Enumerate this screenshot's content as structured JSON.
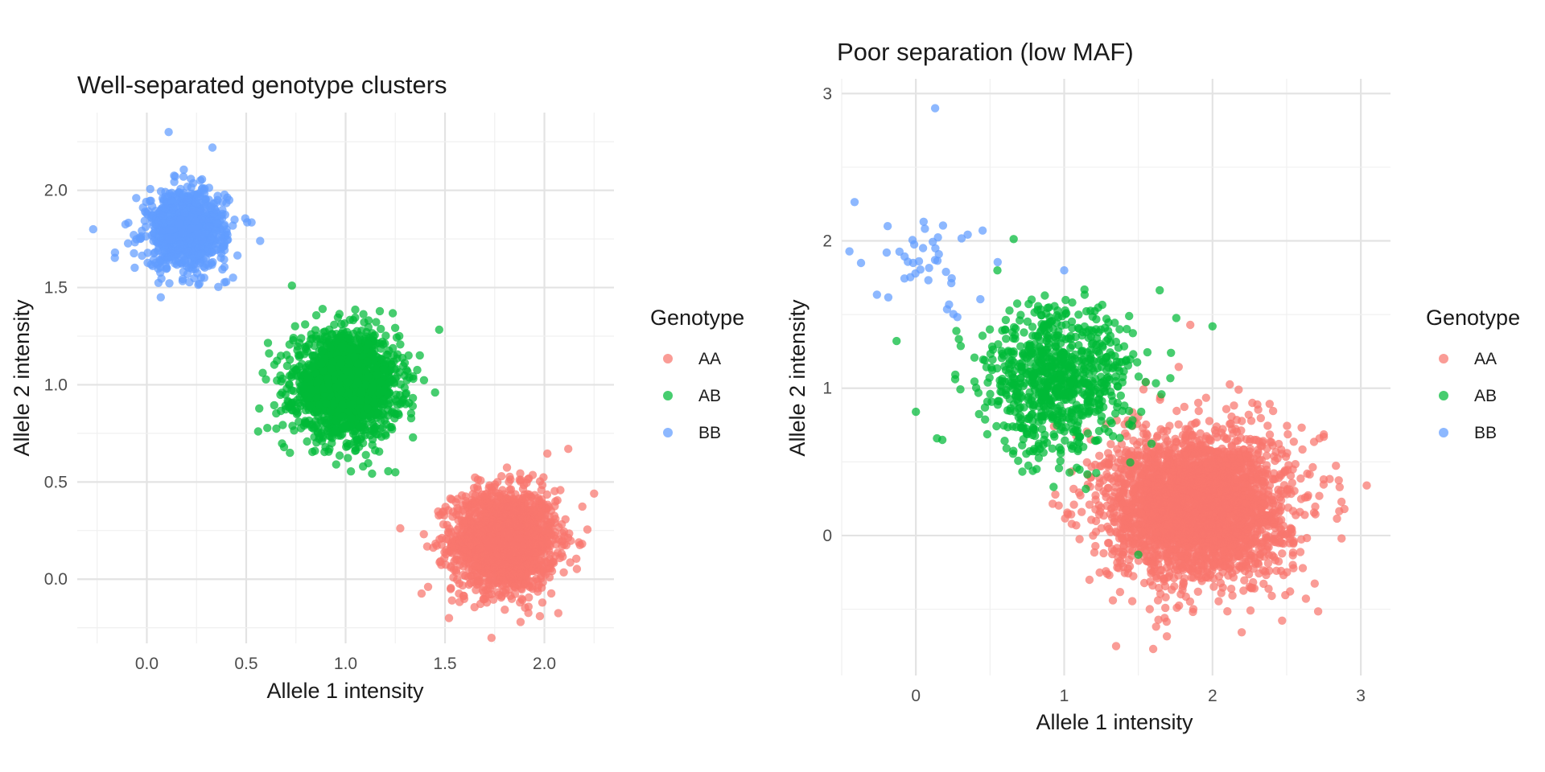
{
  "chart_data": [
    {
      "type": "scatter",
      "title": "Well-separated genotype clusters",
      "xlabel": "Allele 1 intensity",
      "ylabel": "Allele 2 intensity",
      "xlim": [
        -0.35,
        2.35
      ],
      "ylim": [
        -0.33,
        2.4
      ],
      "xticks": [
        0.0,
        0.5,
        1.0,
        1.5,
        2.0
      ],
      "xtick_labels": [
        "0.0",
        "0.5",
        "1.0",
        "1.5",
        "2.0"
      ],
      "yticks": [
        0.0,
        0.5,
        1.0,
        1.5,
        2.0
      ],
      "ytick_labels": [
        "0.0",
        "0.5",
        "1.0",
        "1.5",
        "2.0"
      ],
      "grid": true,
      "legend": {
        "title": "Genotype",
        "position": "right"
      },
      "series": [
        {
          "name": "AA",
          "color": "#F8766D",
          "center": [
            1.8,
            0.2
          ],
          "sd": [
            0.13,
            0.13
          ],
          "n": 1800,
          "outliers": [
            [
              2.12,
              0.67
            ],
            [
              1.88,
              -0.22
            ],
            [
              2.25,
              0.44
            ],
            [
              1.52,
              -0.2
            ]
          ]
        },
        {
          "name": "AB",
          "color": "#00BA38",
          "center": [
            1.0,
            1.0
          ],
          "sd": [
            0.13,
            0.13
          ],
          "n": 1800,
          "outliers": [
            [
              0.73,
              1.51
            ],
            [
              0.56,
              0.76
            ],
            [
              1.25,
              0.55
            ],
            [
              0.72,
              0.65
            ],
            [
              1.45,
              0.96
            ]
          ]
        },
        {
          "name": "BB",
          "color": "#619CFF",
          "center": [
            0.2,
            1.8
          ],
          "sd": [
            0.1,
            0.1
          ],
          "n": 900,
          "outliers": [
            [
              0.11,
              2.3
            ],
            [
              0.33,
              2.22
            ],
            [
              -0.27,
              1.8
            ],
            [
              0.07,
              1.45
            ],
            [
              0.57,
              1.74
            ],
            [
              -0.16,
              1.68
            ]
          ]
        }
      ]
    },
    {
      "type": "scatter",
      "title": "Poor separation (low MAF)",
      "xlabel": "Allele 1 intensity",
      "ylabel": "Allele 2 intensity",
      "xlim": [
        -0.5,
        3.2
      ],
      "ylim": [
        -0.95,
        3.1
      ],
      "xticks": [
        0,
        1,
        2,
        3
      ],
      "xtick_labels": [
        "0",
        "1",
        "2",
        "3"
      ],
      "yticks": [
        0,
        1,
        2,
        3
      ],
      "ytick_labels": [
        "0",
        "1",
        "2",
        "3"
      ],
      "grid": true,
      "legend": {
        "title": "Genotype",
        "position": "right"
      },
      "series": [
        {
          "name": "AA",
          "color": "#F8766D",
          "center": [
            1.9,
            0.2
          ],
          "sd": [
            0.3,
            0.25
          ],
          "n": 3000,
          "outliers": [
            [
              3.04,
              0.34
            ],
            [
              1.6,
              -0.77
            ],
            [
              1.35,
              -0.75
            ],
            [
              1.85,
              1.43
            ],
            [
              2.75,
              0.67
            ],
            [
              2.87,
              -0.02
            ]
          ]
        },
        {
          "name": "AB",
          "color": "#00BA38",
          "center": [
            0.95,
            1.05
          ],
          "sd": [
            0.25,
            0.25
          ],
          "n": 800,
          "outliers": [
            [
              0.0,
              0.84
            ],
            [
              -0.13,
              1.32
            ],
            [
              0.55,
              1.8
            ],
            [
              1.5,
              -0.13
            ],
            [
              2.0,
              1.42
            ]
          ]
        },
        {
          "name": "BB",
          "color": "#619CFF",
          "center": [
            0.1,
            1.85
          ],
          "sd": [
            0.2,
            0.17
          ],
          "n": 40,
          "outliers": [
            [
              0.13,
              2.9
            ],
            [
              -0.37,
              1.85
            ],
            [
              -0.19,
              2.1
            ],
            [
              0.45,
              2.07
            ],
            [
              1.0,
              1.8
            ]
          ]
        }
      ]
    }
  ]
}
